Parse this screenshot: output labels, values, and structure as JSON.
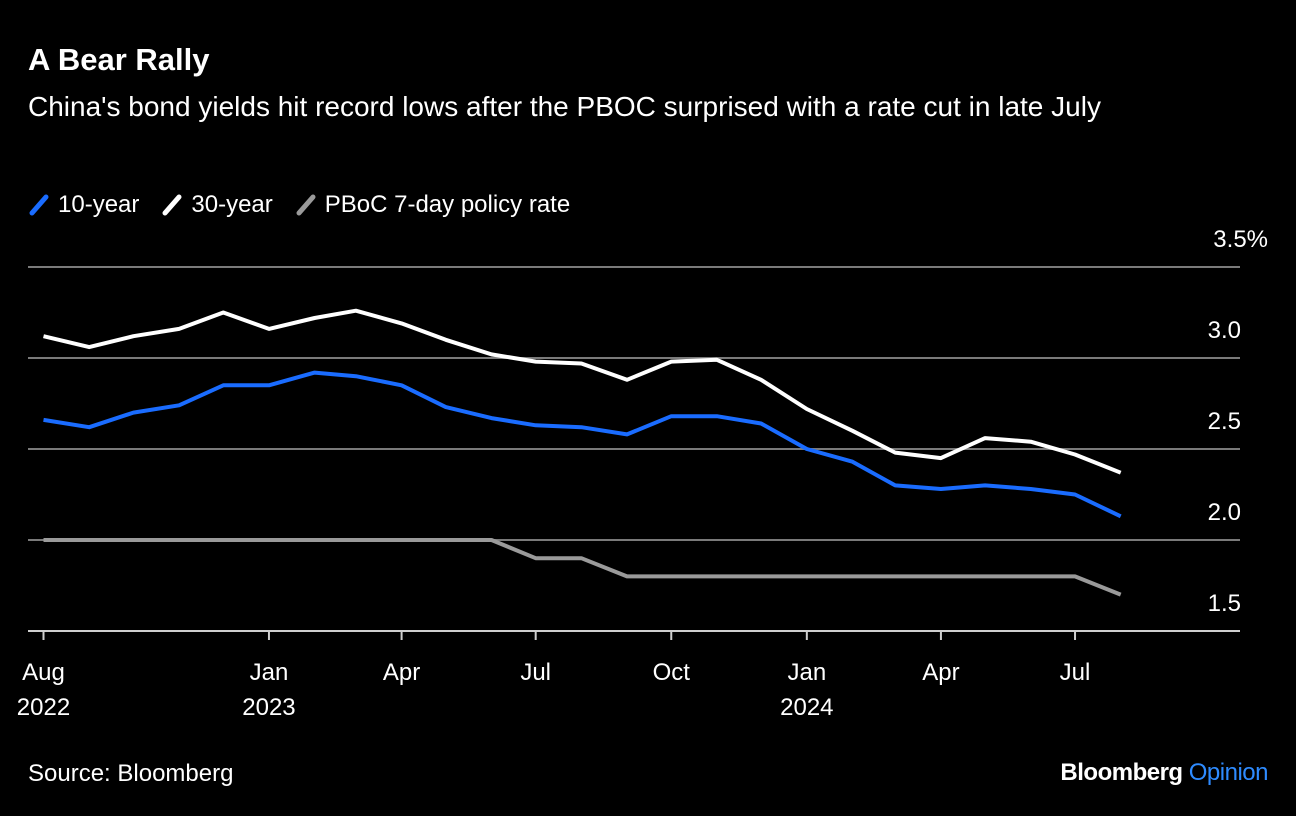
{
  "chart_data": {
    "type": "line",
    "title": "A Bear Rally",
    "subtitle": "China's bond yields hit record lows after the PBOC surprised with a rate cut in late July",
    "source": "Source: Bloomberg",
    "brand": "Bloomberg",
    "brand_sub": "Opinion",
    "x": [
      "2022-08",
      "2022-09",
      "2022-10",
      "2022-11",
      "2022-12",
      "2023-01",
      "2023-02",
      "2023-03",
      "2023-04",
      "2023-05",
      "2023-06",
      "2023-07",
      "2023-08",
      "2023-09",
      "2023-10",
      "2023-11",
      "2023-12",
      "2024-01",
      "2024-02",
      "2024-03",
      "2024-04",
      "2024-05",
      "2024-06",
      "2024-07",
      "2024-08"
    ],
    "series": [
      {
        "name": "10-year",
        "color": "#1a6cff",
        "values": [
          2.66,
          2.62,
          2.7,
          2.74,
          2.85,
          2.85,
          2.92,
          2.9,
          2.85,
          2.73,
          2.67,
          2.63,
          2.62,
          2.58,
          2.68,
          2.68,
          2.64,
          2.5,
          2.43,
          2.3,
          2.28,
          2.3,
          2.28,
          2.25,
          2.13
        ]
      },
      {
        "name": "30-year",
        "color": "#ffffff",
        "values": [
          3.12,
          3.06,
          3.12,
          3.16,
          3.25,
          3.16,
          3.22,
          3.26,
          3.19,
          3.1,
          3.02,
          2.98,
          2.97,
          2.88,
          2.98,
          2.99,
          2.88,
          2.72,
          2.6,
          2.48,
          2.45,
          2.56,
          2.54,
          2.47,
          2.37
        ]
      },
      {
        "name": "PBoC 7-day policy rate",
        "color": "#9a9a9a",
        "values": [
          2.0,
          2.0,
          2.0,
          2.0,
          2.0,
          2.0,
          2.0,
          2.0,
          2.0,
          2.0,
          2.0,
          1.9,
          1.9,
          1.8,
          1.8,
          1.8,
          1.8,
          1.8,
          1.8,
          1.8,
          1.8,
          1.8,
          1.8,
          1.8,
          1.7
        ]
      }
    ],
    "xlim": [
      "2022-08",
      "2024-10"
    ],
    "xticks": [
      {
        "value": "2022-08",
        "label": "Aug",
        "year": "2022"
      },
      {
        "value": "2023-01",
        "label": "Jan",
        "year": "2023"
      },
      {
        "value": "2023-04",
        "label": "Apr"
      },
      {
        "value": "2023-07",
        "label": "Jul"
      },
      {
        "value": "2023-10",
        "label": "Oct"
      },
      {
        "value": "2024-01",
        "label": "Jan",
        "year": "2024"
      },
      {
        "value": "2024-04",
        "label": "Apr"
      },
      {
        "value": "2024-07",
        "label": "Jul"
      }
    ],
    "ylim": [
      1.5,
      3.5
    ],
    "yticks": [
      1.5,
      {
        "value": 2,
        "label": "2.0"
      },
      2.5,
      {
        "value": 3,
        "label": "3.0"
      },
      {
        "value": 3.5,
        "label": "3.5%"
      }
    ],
    "grid": true
  }
}
